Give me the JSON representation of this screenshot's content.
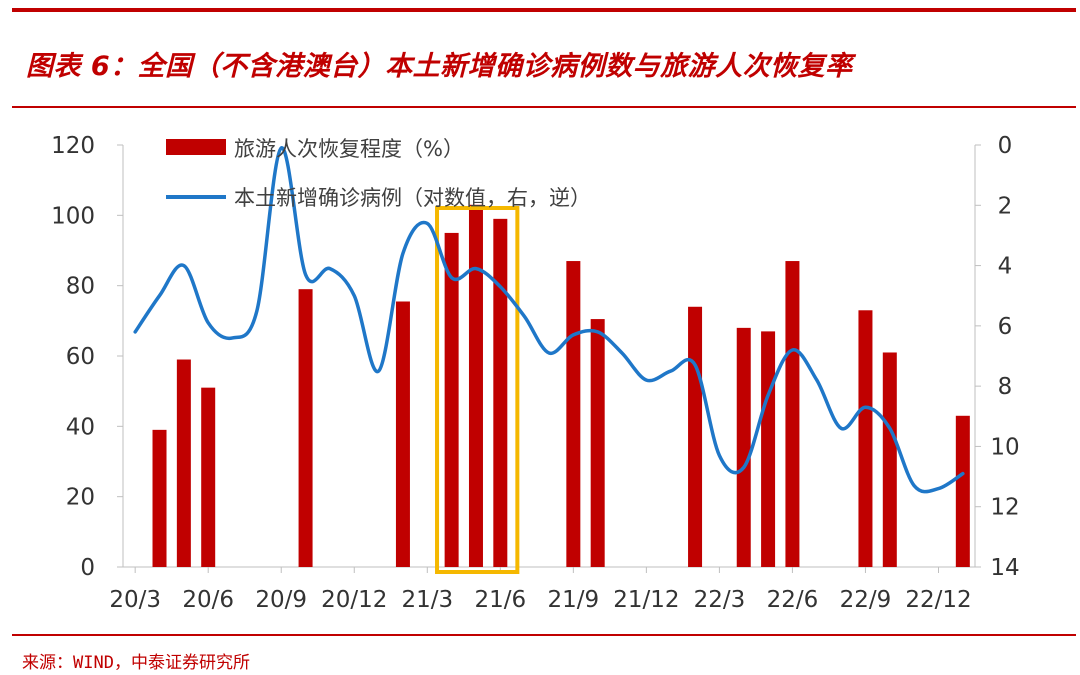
{
  "header": {
    "title": "图表 6：全国（不含港澳台）本土新增确诊病例数与旅游人次恢复率"
  },
  "footer": {
    "source": "来源：WIND，中泰证券研究所"
  },
  "colors": {
    "brand": "#c00000",
    "bar": "#c00000",
    "line": "#1f77c8",
    "highlight": "#f5b800"
  },
  "chart_data": {
    "type": "bar+line",
    "title": "全国（不含港澳台）本土新增确诊病例数与旅游人次恢复率",
    "x_range": [
      0,
      34
    ],
    "x_tick_positions": [
      0,
      3,
      6,
      9,
      12,
      15,
      18,
      21,
      24,
      27,
      30,
      33
    ],
    "x_tick_labels": [
      "20/3",
      "20/6",
      "20/9",
      "20/12",
      "21/3",
      "21/6",
      "21/9",
      "21/12",
      "22/3",
      "22/6",
      "22/9",
      "22/12"
    ],
    "y_left": {
      "range": [
        0,
        120
      ],
      "ticks": [
        0,
        20,
        40,
        60,
        80,
        100,
        120
      ]
    },
    "y_right": {
      "range": [
        0,
        14
      ],
      "inverted": true,
      "ticks": [
        0,
        2,
        4,
        6,
        8,
        10,
        12,
        14
      ]
    },
    "legend": [
      "旅游人次恢复程度（%）",
      "本土新增确诊病例（对数值，右，逆）"
    ],
    "bars": {
      "name": "旅游人次恢复程度（%）",
      "x": [
        1,
        2,
        3,
        7,
        11,
        13,
        14,
        15,
        18,
        19,
        23,
        25,
        26,
        27,
        30,
        31,
        34
      ],
      "values": [
        39,
        59,
        51,
        79,
        75.5,
        95,
        103,
        99,
        87,
        70.5,
        74,
        68,
        67,
        87,
        73,
        61,
        43
      ]
    },
    "line": {
      "name": "本土新增确诊病例（对数值，右，逆）",
      "x": [
        0,
        1,
        2,
        3,
        4,
        5,
        6,
        7,
        8,
        9,
        10,
        11,
        12,
        13,
        14,
        15,
        16,
        17,
        18,
        19,
        20,
        21,
        22,
        23,
        24,
        25,
        26,
        27,
        28,
        29,
        30,
        31,
        32,
        33,
        34
      ],
      "values": [
        6.2,
        5.0,
        4.0,
        5.9,
        6.4,
        5.5,
        0.1,
        4.3,
        4.1,
        5.0,
        7.5,
        3.6,
        2.6,
        4.4,
        4.1,
        4.7,
        5.7,
        6.9,
        6.3,
        6.2,
        6.9,
        7.8,
        7.5,
        7.3,
        10.3,
        10.7,
        8.3,
        6.8,
        7.8,
        9.4,
        8.7,
        9.4,
        11.3,
        11.4,
        10.9
      ]
    },
    "highlight_box": {
      "x_from": 12.4,
      "x_to": 15.7,
      "label": ""
    }
  }
}
